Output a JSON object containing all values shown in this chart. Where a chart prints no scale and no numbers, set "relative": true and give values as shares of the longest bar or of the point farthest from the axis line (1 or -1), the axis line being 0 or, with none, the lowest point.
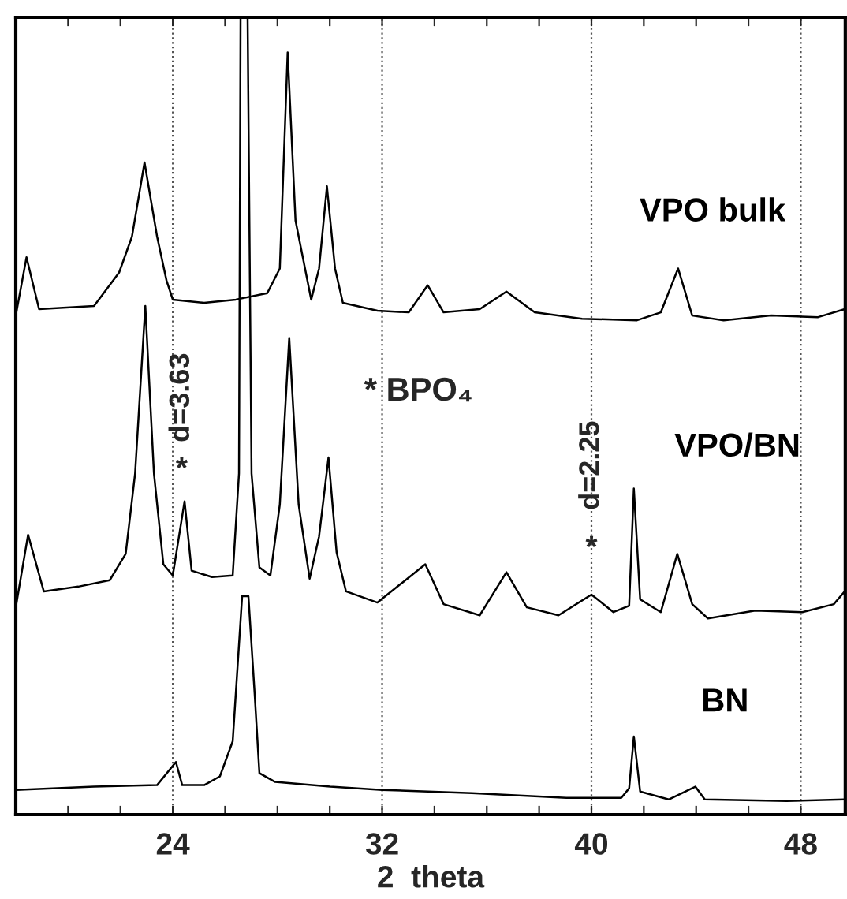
{
  "chart_data": {
    "type": "line",
    "relative": true,
    "xlabel": "2  theta",
    "xlim": [
      18.0,
      49.7
    ],
    "xticks": [
      {
        "value": 20,
        "label": null
      },
      {
        "value": 22,
        "label": null
      },
      24,
      {
        "value": 26,
        "label": null
      },
      {
        "value": 28,
        "label": null
      },
      {
        "value": 30,
        "label": null
      },
      32,
      {
        "value": 34,
        "label": null
      },
      {
        "value": 36,
        "label": null
      },
      {
        "value": 38,
        "label": null
      },
      40,
      {
        "value": 42,
        "label": null
      },
      {
        "value": 44,
        "label": null
      },
      {
        "value": 46,
        "label": null
      },
      48
    ],
    "grid": "x",
    "legend": false,
    "marker": "none",
    "line_style": "solid",
    "series": [
      {
        "name": "VPO bulk",
        "color": "#000000",
        "x": [
          18.0,
          18.41,
          18.89,
          20.99,
          21.95,
          22.44,
          22.92,
          23.4,
          23.76,
          24.0,
          25.2,
          26.41,
          27.61,
          28.09,
          28.39,
          28.69,
          29.29,
          29.59,
          29.89,
          30.2,
          30.5,
          31.82,
          33.02,
          33.74,
          34.35,
          35.73,
          36.75,
          37.83,
          39.64,
          41.74,
          42.65,
          43.31,
          43.85,
          45.05,
          46.86,
          48.66,
          49.68
        ],
        "values": [
          0.626,
          0.699,
          0.634,
          0.638,
          0.68,
          0.725,
          0.818,
          0.725,
          0.67,
          0.646,
          0.642,
          0.646,
          0.654,
          0.685,
          0.956,
          0.745,
          0.646,
          0.685,
          0.788,
          0.685,
          0.642,
          0.632,
          0.63,
          0.664,
          0.63,
          0.634,
          0.656,
          0.63,
          0.622,
          0.62,
          0.63,
          0.685,
          0.626,
          0.62,
          0.626,
          0.624,
          0.634
        ]
      },
      {
        "name": "VPO/BN",
        "color": "#000000",
        "x": [
          18.0,
          18.47,
          19.07,
          20.39,
          21.59,
          22.2,
          22.56,
          22.95,
          23.28,
          23.64,
          24.0,
          24.45,
          24.72,
          25.5,
          26.29,
          26.53,
          26.59,
          26.86,
          27.01,
          27.31,
          27.73,
          28.09,
          28.45,
          28.81,
          29.23,
          29.59,
          29.95,
          30.26,
          30.62,
          31.82,
          33.65,
          34.35,
          35.73,
          36.75,
          37.53,
          38.74,
          40.0,
          40.84,
          41.44,
          41.62,
          41.86,
          42.65,
          43.28,
          43.85,
          44.45,
          46.26,
          48.06,
          49.26,
          49.68
        ],
        "values": [
          0.26,
          0.351,
          0.28,
          0.286,
          0.294,
          0.327,
          0.428,
          0.638,
          0.428,
          0.314,
          0.3,
          0.393,
          0.306,
          0.298,
          0.3,
          0.428,
          1.0,
          1.0,
          0.428,
          0.31,
          0.3,
          0.389,
          0.598,
          0.389,
          0.296,
          0.349,
          0.448,
          0.329,
          0.28,
          0.266,
          0.314,
          0.264,
          0.25,
          0.304,
          0.26,
          0.25,
          0.276,
          0.254,
          0.262,
          0.409,
          0.27,
          0.254,
          0.327,
          0.264,
          0.246,
          0.256,
          0.254,
          0.264,
          0.28
        ]
      },
      {
        "name": "BN",
        "color": "#000000",
        "x": [
          18.0,
          20.99,
          23.4,
          24.12,
          24.36,
          25.2,
          25.8,
          26.29,
          26.65,
          26.89,
          27.13,
          27.31,
          27.91,
          30.02,
          32.0,
          35.43,
          39.04,
          41.14,
          41.44,
          41.62,
          41.86,
          42.95,
          43.97,
          44.33,
          47.46,
          49.68
        ],
        "values": [
          0.031,
          0.035,
          0.037,
          0.066,
          0.037,
          0.037,
          0.048,
          0.092,
          0.274,
          0.274,
          0.151,
          0.052,
          0.041,
          0.035,
          0.031,
          0.027,
          0.021,
          0.021,
          0.033,
          0.098,
          0.029,
          0.019,
          0.035,
          0.019,
          0.017,
          0.019
        ]
      }
    ],
    "annotations": [
      "*",
      "d=3.63",
      "* BPO₄",
      "*",
      "d=2.25"
    ]
  }
}
